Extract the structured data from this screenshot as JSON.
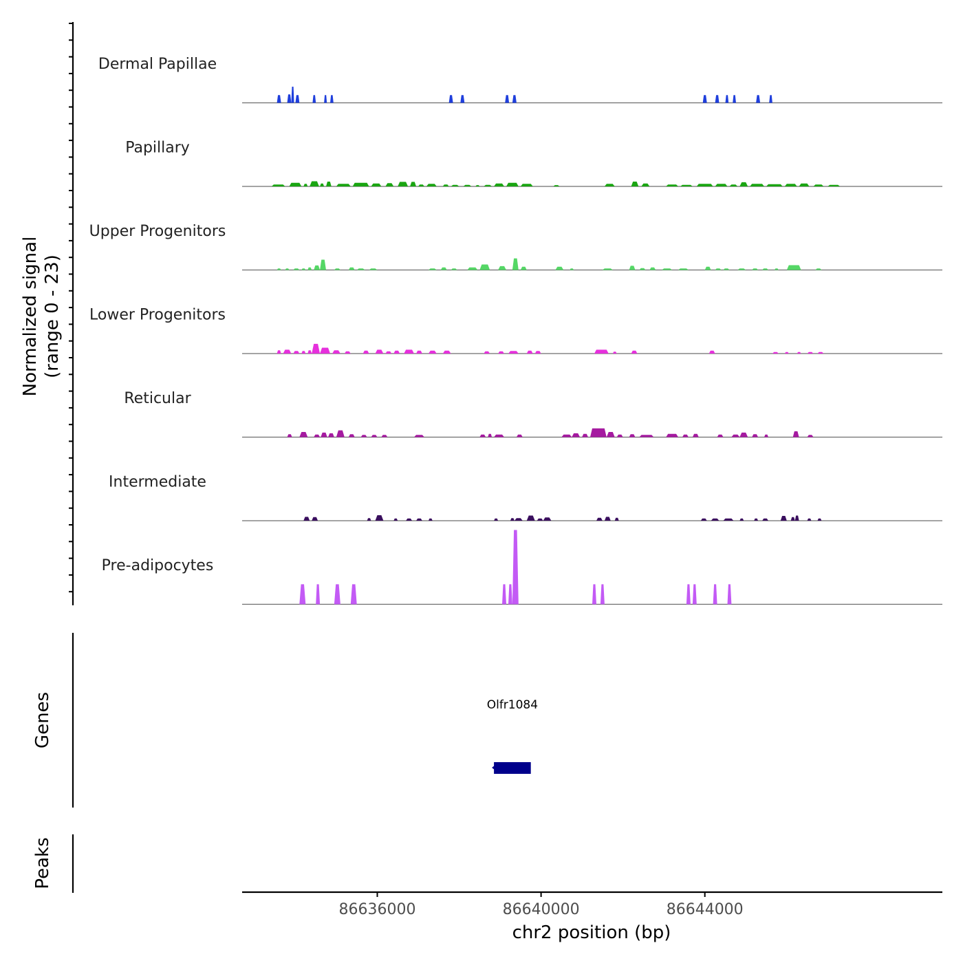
{
  "chart_data": {
    "type": "area",
    "title": "",
    "ylabel": [
      "Normalized signal",
      "(range 0 - 23)"
    ],
    "xlabel": "chr2 position (bp)",
    "xlim": [
      86632700,
      86649800
    ],
    "ylim": [
      0,
      23
    ],
    "xticks": [
      86636000,
      86640000,
      86644000
    ],
    "xtick_labels": [
      "86636000",
      "86640000",
      "86644000"
    ],
    "series": [
      {
        "name": "Dermal Papillae",
        "color": "#1f3fdc",
        "peaks": [
          [
            86633550,
            86633650,
            2.4
          ],
          [
            86633800,
            86633900,
            2.6
          ],
          [
            86633900,
            86633970,
            5
          ],
          [
            86634000,
            86634100,
            2.4
          ],
          [
            86634420,
            86634500,
            2.4
          ],
          [
            86634700,
            86634770,
            2.4
          ],
          [
            86634850,
            86634930,
            2.4
          ],
          [
            86637750,
            86637850,
            2.4
          ],
          [
            86638030,
            86638130,
            2.4
          ],
          [
            86639120,
            86639220,
            2.4
          ],
          [
            86639300,
            86639400,
            2.4
          ],
          [
            86643950,
            86644050,
            2.4
          ],
          [
            86644250,
            86644350,
            2.4
          ],
          [
            86644500,
            86644580,
            2.4
          ],
          [
            86644680,
            86644760,
            2.4
          ],
          [
            86645250,
            86645350,
            2.4
          ],
          [
            86645570,
            86645650,
            2.4
          ]
        ]
      },
      {
        "name": "Papillary",
        "color": "#1aa512",
        "peaks": [
          [
            86633420,
            86633750,
            0.6
          ],
          [
            86633850,
            86634150,
            1.1
          ],
          [
            86634200,
            86634300,
            0.8
          ],
          [
            86634350,
            86634580,
            1.6
          ],
          [
            86634600,
            86634700,
            0.9
          ],
          [
            86634750,
            86634880,
            1.5
          ],
          [
            86635000,
            86635350,
            0.8
          ],
          [
            86635400,
            86635800,
            1.1
          ],
          [
            86635850,
            86636100,
            0.9
          ],
          [
            86636200,
            86636400,
            1.0
          ],
          [
            86636500,
            86636750,
            1.4
          ],
          [
            86636800,
            86636950,
            1.4
          ],
          [
            86637000,
            86637150,
            0.6
          ],
          [
            86637200,
            86637450,
            0.8
          ],
          [
            86637600,
            86637750,
            0.6
          ],
          [
            86637800,
            86638000,
            0.5
          ],
          [
            86638100,
            86638300,
            0.5
          ],
          [
            86638400,
            86638500,
            0.4
          ],
          [
            86638600,
            86638800,
            0.5
          ],
          [
            86638850,
            86639100,
            0.9
          ],
          [
            86639150,
            86639450,
            1.1
          ],
          [
            86639500,
            86639800,
            0.8
          ],
          [
            86640300,
            86640450,
            0.4
          ],
          [
            86641550,
            86641800,
            0.8
          ],
          [
            86642200,
            86642380,
            1.5
          ],
          [
            86642450,
            86642650,
            0.9
          ],
          [
            86643050,
            86643350,
            0.6
          ],
          [
            86643400,
            86643700,
            0.5
          ],
          [
            86643800,
            86644200,
            0.8
          ],
          [
            86644250,
            86644550,
            0.8
          ],
          [
            86644600,
            86644800,
            0.6
          ],
          [
            86644850,
            86645050,
            1.3
          ],
          [
            86645100,
            86645450,
            0.8
          ],
          [
            86645500,
            86645900,
            0.7
          ],
          [
            86645950,
            86646250,
            0.8
          ],
          [
            86646300,
            86646550,
            0.9
          ],
          [
            86646650,
            86646900,
            0.6
          ],
          [
            86647000,
            86647300,
            0.5
          ]
        ]
      },
      {
        "name": "Upper Progenitors",
        "color": "#55d766",
        "peaks": [
          [
            86633550,
            86633650,
            0.5
          ],
          [
            86633750,
            86633850,
            0.5
          ],
          [
            86633950,
            86634100,
            0.5
          ],
          [
            86634150,
            86634250,
            0.5
          ],
          [
            86634300,
            86634400,
            0.8
          ],
          [
            86634450,
            86634600,
            1.4
          ],
          [
            86634600,
            86634750,
            3.2
          ],
          [
            86634950,
            86635100,
            0.5
          ],
          [
            86635300,
            86635450,
            0.8
          ],
          [
            86635500,
            86635700,
            0.5
          ],
          [
            86635800,
            86636000,
            0.5
          ],
          [
            86637250,
            86637450,
            0.5
          ],
          [
            86637550,
            86637700,
            0.8
          ],
          [
            86637800,
            86637950,
            0.5
          ],
          [
            86638200,
            86638450,
            0.8
          ],
          [
            86638500,
            86638750,
            1.7
          ],
          [
            86638950,
            86639150,
            1.2
          ],
          [
            86639300,
            86639450,
            3.6
          ],
          [
            86639500,
            86639650,
            1.0
          ],
          [
            86640350,
            86640550,
            1.0
          ],
          [
            86640700,
            86640800,
            0.5
          ],
          [
            86641500,
            86641750,
            0.5
          ],
          [
            86642150,
            86642300,
            1.3
          ],
          [
            86642400,
            86642550,
            0.6
          ],
          [
            86642650,
            86642800,
            0.8
          ],
          [
            86642950,
            86643200,
            0.5
          ],
          [
            86643350,
            86643600,
            0.5
          ],
          [
            86644000,
            86644150,
            1.0
          ],
          [
            86644250,
            86644400,
            0.5
          ],
          [
            86644450,
            86644600,
            0.5
          ],
          [
            86644800,
            86645000,
            0.5
          ],
          [
            86645150,
            86645300,
            0.5
          ],
          [
            86645400,
            86645550,
            0.5
          ],
          [
            86645700,
            86645800,
            0.5
          ],
          [
            86646000,
            86646350,
            1.5
          ],
          [
            86646700,
            86646850,
            0.5
          ]
        ]
      },
      {
        "name": "Lower Progenitors",
        "color": "#e630dc",
        "peaks": [
          [
            86633550,
            86633650,
            1.0
          ],
          [
            86633700,
            86633900,
            1.2
          ],
          [
            86633950,
            86634100,
            0.8
          ],
          [
            86634150,
            86634250,
            0.8
          ],
          [
            86634300,
            86634400,
            1.0
          ],
          [
            86634400,
            86634600,
            3.0
          ],
          [
            86634600,
            86634850,
            1.8
          ],
          [
            86634900,
            86635100,
            1.0
          ],
          [
            86635200,
            86635350,
            0.7
          ],
          [
            86635650,
            86635800,
            0.9
          ],
          [
            86635950,
            86636150,
            1.2
          ],
          [
            86636200,
            86636350,
            0.7
          ],
          [
            86636400,
            86636550,
            0.9
          ],
          [
            86636650,
            86636900,
            1.2
          ],
          [
            86636950,
            86637100,
            0.9
          ],
          [
            86637250,
            86637450,
            0.9
          ],
          [
            86637600,
            86637800,
            0.9
          ],
          [
            86638600,
            86638750,
            0.7
          ],
          [
            86638950,
            86639100,
            0.7
          ],
          [
            86639200,
            86639450,
            0.8
          ],
          [
            86639650,
            86639800,
            0.9
          ],
          [
            86639850,
            86640000,
            0.8
          ],
          [
            86641300,
            86641650,
            1.2
          ],
          [
            86641750,
            86641850,
            0.6
          ],
          [
            86642200,
            86642350,
            0.9
          ],
          [
            86644100,
            86644250,
            0.9
          ],
          [
            86645650,
            86645800,
            0.5
          ],
          [
            86645950,
            86646050,
            0.5
          ],
          [
            86646250,
            86646350,
            0.5
          ],
          [
            86646500,
            86646650,
            0.5
          ],
          [
            86646750,
            86646900,
            0.5
          ]
        ]
      },
      {
        "name": "Reticular",
        "color": "#a51aa0",
        "peaks": [
          [
            86633800,
            86633920,
            0.9
          ],
          [
            86634100,
            86634300,
            1.6
          ],
          [
            86634450,
            86634600,
            0.8
          ],
          [
            86634620,
            86634780,
            1.4
          ],
          [
            86634800,
            86634950,
            1.2
          ],
          [
            86635000,
            86635200,
            2.1
          ],
          [
            86635300,
            86635450,
            0.9
          ],
          [
            86635600,
            86635750,
            0.7
          ],
          [
            86635850,
            86636000,
            0.7
          ],
          [
            86636100,
            86636250,
            0.7
          ],
          [
            86636900,
            86637150,
            0.7
          ],
          [
            86638500,
            86638650,
            0.8
          ],
          [
            86638700,
            86638800,
            1.0
          ],
          [
            86638850,
            86639100,
            0.8
          ],
          [
            86639400,
            86639550,
            0.8
          ],
          [
            86640500,
            86640750,
            0.8
          ],
          [
            86640750,
            86640950,
            1.2
          ],
          [
            86641000,
            86641150,
            1.0
          ],
          [
            86641200,
            86641600,
            2.7
          ],
          [
            86641600,
            86641800,
            1.6
          ],
          [
            86641850,
            86642000,
            0.8
          ],
          [
            86642150,
            86642300,
            0.9
          ],
          [
            86642400,
            86642750,
            0.7
          ],
          [
            86643050,
            86643350,
            1.0
          ],
          [
            86643450,
            86643600,
            0.8
          ],
          [
            86643700,
            86643850,
            1.0
          ],
          [
            86644300,
            86644450,
            0.8
          ],
          [
            86644650,
            86644850,
            0.8
          ],
          [
            86644850,
            86645050,
            1.4
          ],
          [
            86645150,
            86645300,
            0.9
          ],
          [
            86645450,
            86645550,
            0.8
          ],
          [
            86646150,
            86646300,
            1.8
          ],
          [
            86646500,
            86646650,
            0.7
          ]
        ]
      },
      {
        "name": "Intermediate",
        "color": "#3a0f5e",
        "peaks": [
          [
            86634200,
            86634350,
            1.2
          ],
          [
            86634400,
            86634550,
            1.1
          ],
          [
            86635750,
            86635850,
            0.8
          ],
          [
            86635950,
            86636150,
            1.7
          ],
          [
            86636400,
            86636500,
            0.7
          ],
          [
            86636700,
            86636850,
            0.7
          ],
          [
            86636950,
            86637100,
            0.7
          ],
          [
            86637250,
            86637350,
            0.7
          ],
          [
            86638850,
            86638950,
            0.7
          ],
          [
            86639250,
            86639350,
            0.8
          ],
          [
            86639350,
            86639550,
            0.8
          ],
          [
            86639650,
            86639850,
            1.6
          ],
          [
            86639900,
            86640050,
            0.7
          ],
          [
            86640050,
            86640250,
            1.0
          ],
          [
            86641350,
            86641500,
            0.9
          ],
          [
            86641550,
            86641700,
            1.2
          ],
          [
            86641800,
            86641900,
            0.9
          ],
          [
            86643900,
            86644050,
            0.7
          ],
          [
            86644150,
            86644350,
            0.7
          ],
          [
            86644450,
            86644700,
            0.7
          ],
          [
            86644850,
            86644950,
            0.7
          ],
          [
            86645200,
            86645300,
            0.7
          ],
          [
            86645400,
            86645550,
            0.7
          ],
          [
            86645850,
            86646000,
            1.5
          ],
          [
            86646100,
            86646200,
            1.1
          ],
          [
            86646200,
            86646300,
            1.6
          ],
          [
            86646500,
            86646600,
            0.7
          ],
          [
            86646750,
            86646850,
            0.7
          ]
        ]
      },
      {
        "name": "Pre-adipocytes",
        "color": "#c35af5",
        "peaks": [
          [
            86634100,
            86634250,
            6.2
          ],
          [
            86634500,
            86634600,
            6.2
          ],
          [
            86634950,
            86635100,
            6.2
          ],
          [
            86635350,
            86635500,
            6.2
          ],
          [
            86639050,
            86639150,
            6.2
          ],
          [
            86639200,
            86639300,
            6.2
          ],
          [
            86639300,
            86639450,
            23
          ],
          [
            86641250,
            86641350,
            6.2
          ],
          [
            86641450,
            86641550,
            6.2
          ],
          [
            86643550,
            86643650,
            6.2
          ],
          [
            86643700,
            86643800,
            6.2
          ],
          [
            86644200,
            86644300,
            6.2
          ],
          [
            86644550,
            86644650,
            6.2
          ]
        ]
      }
    ],
    "genes_label": "Genes",
    "genes": [
      {
        "name": "Olfr1084",
        "start": 86638850,
        "end": 86639750,
        "color": "#00008b"
      }
    ],
    "peaks_label": "Peaks"
  }
}
